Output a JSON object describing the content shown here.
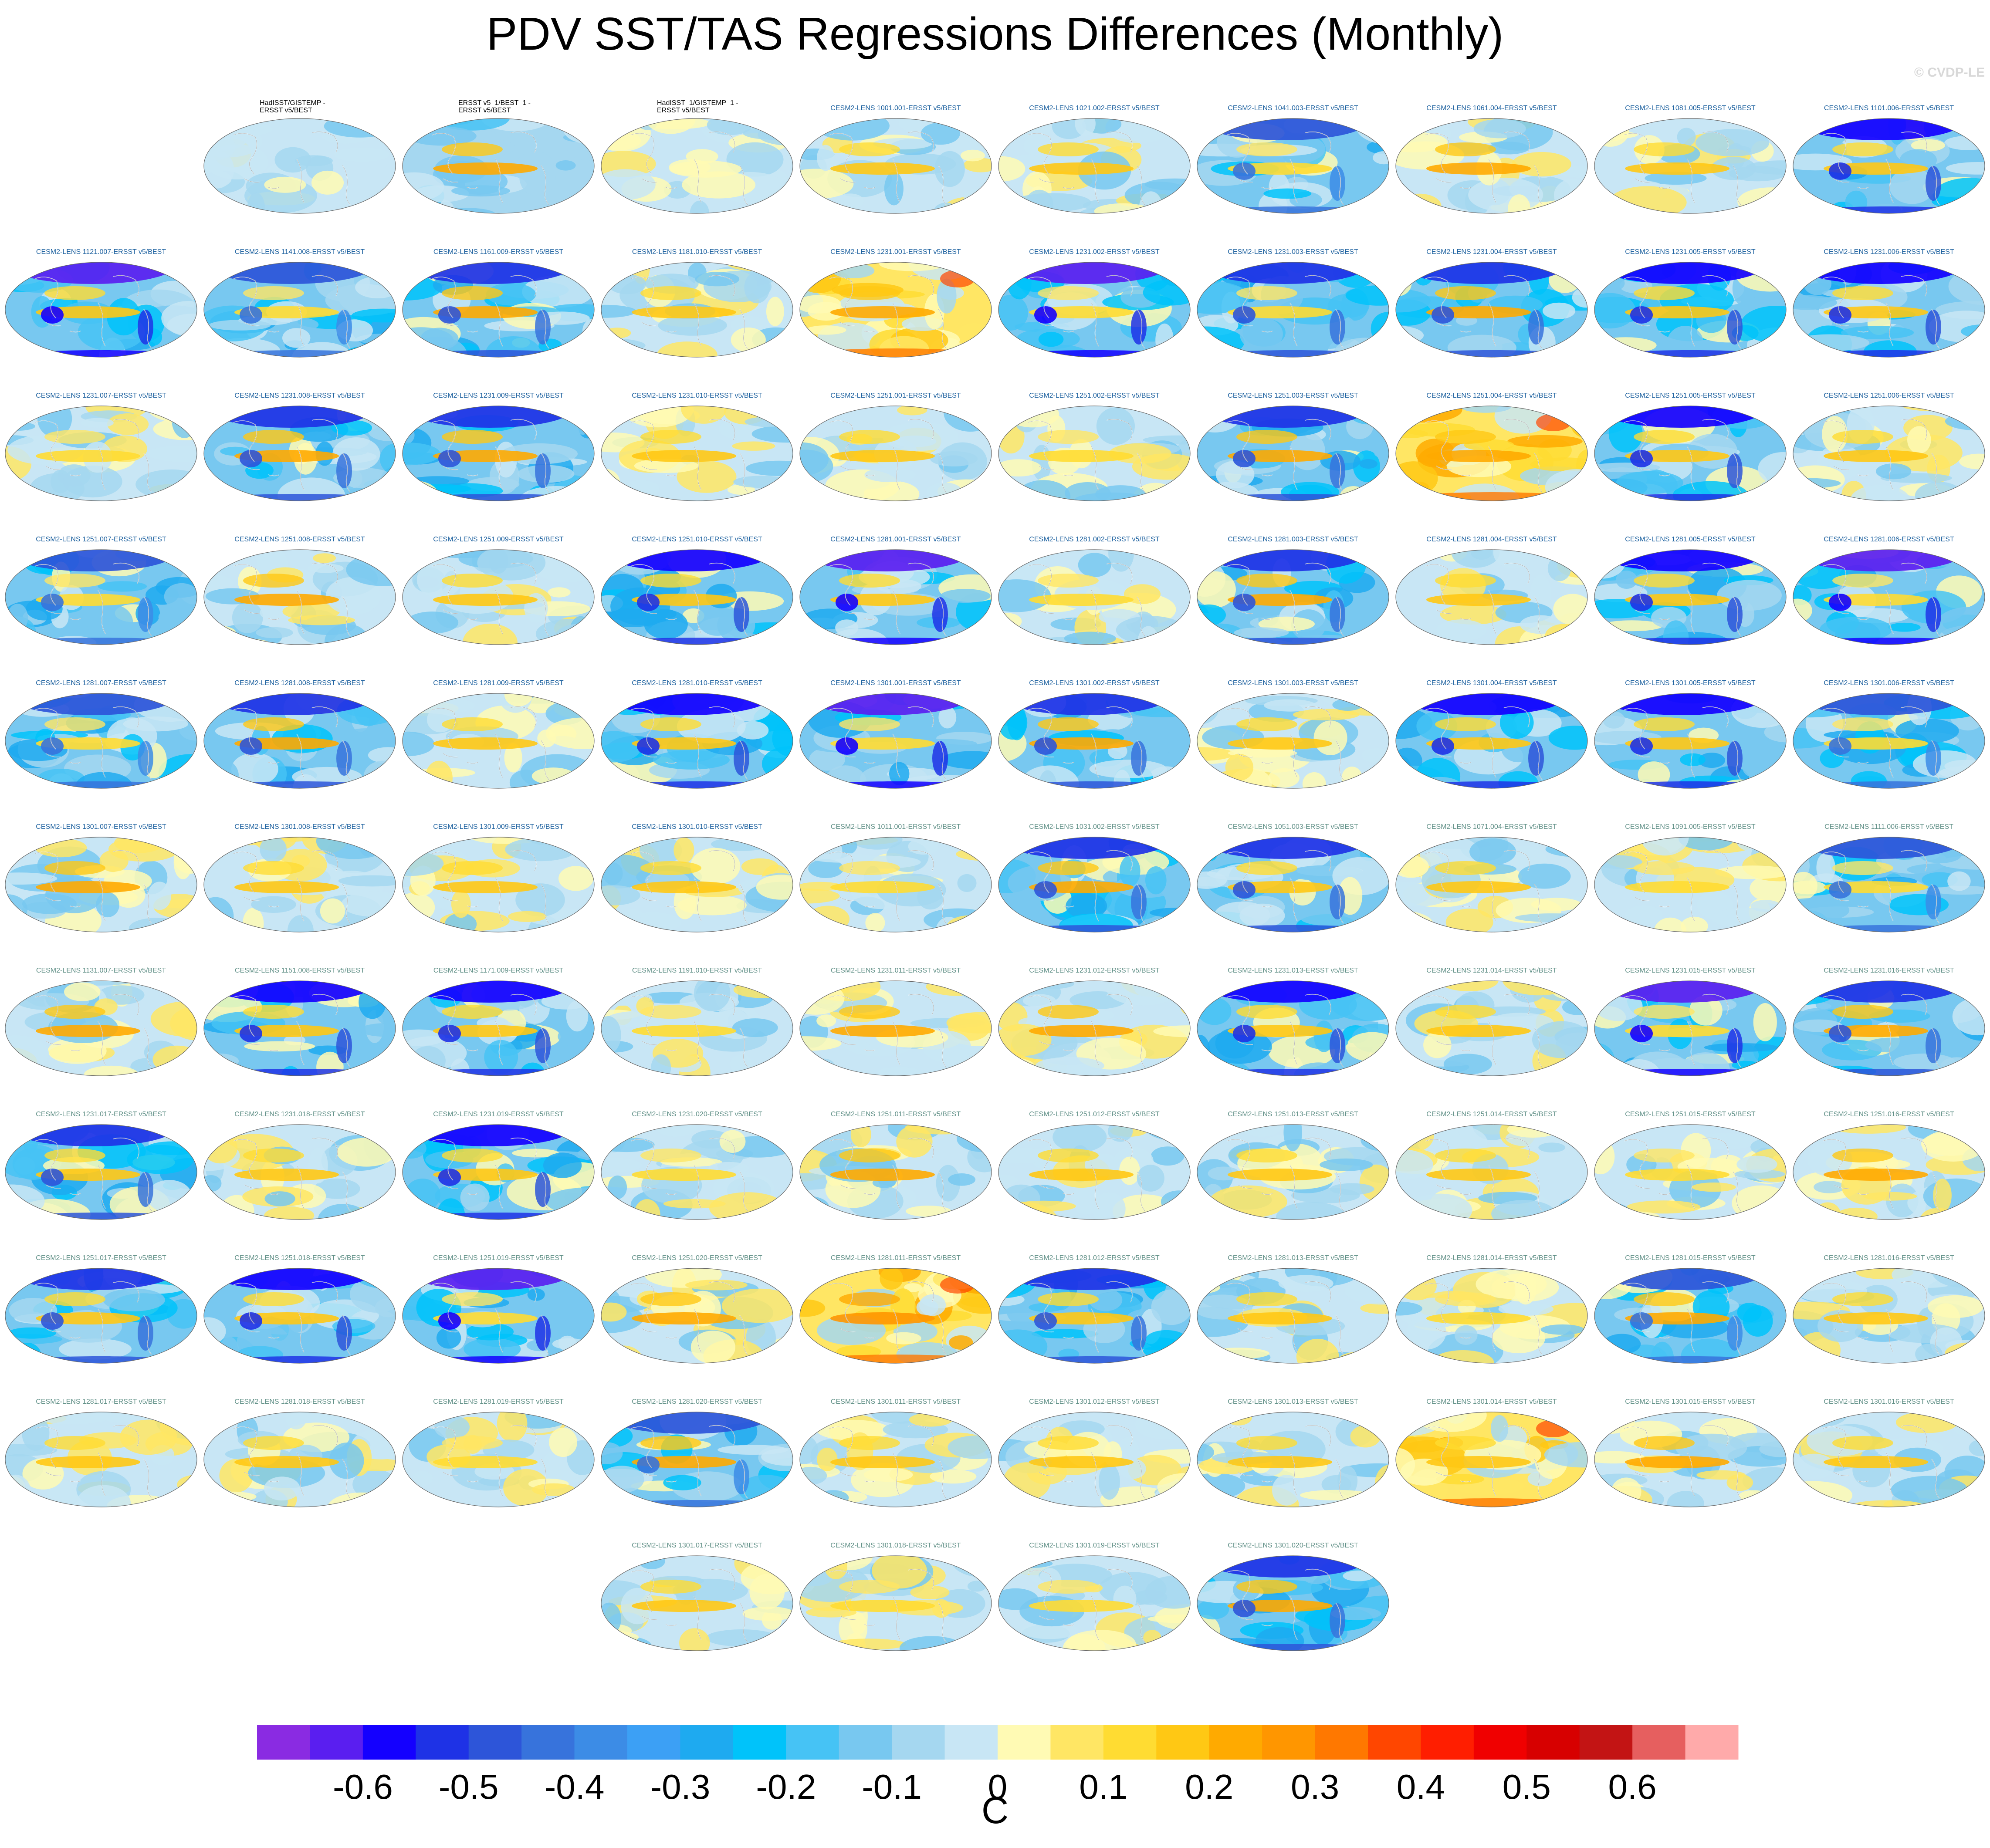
{
  "title": "PDV SST/TAS Regressions Differences (Monthly)",
  "watermark": "© CVDP-LE",
  "chart_data": {
    "type": "heatmap",
    "projection": "robinson",
    "layout": "small multiples",
    "rows": [
      [
        null,
        {
          "label": "HadISST/GISTEMP -\nERSST v5/BEST",
          "label_color": "#000000",
          "mode": "obs"
        },
        {
          "label": "ERSST v5_1/BEST_1 -\nERSST v5/BEST",
          "label_color": "#000000",
          "mode": "obs2"
        },
        {
          "label": "HadISST_1/GISTEMP_1 -\nERSST v5/BEST",
          "label_color": "#000000",
          "mode": "obs"
        },
        {
          "label": "CESM2-LENS 1001.001-ERSST v5/BEST",
          "label_color": "#1a5f9e",
          "mode": "mid"
        },
        {
          "label": "CESM2-LENS 1021.002-ERSST v5/BEST",
          "label_color": "#1a5f9e",
          "mode": "mid"
        },
        {
          "label": "CESM2-LENS 1041.003-ERSST v5/BEST",
          "label_color": "#1a5f9e",
          "mode": "cool"
        },
        {
          "label": "CESM2-LENS 1061.004-ERSST v5/BEST",
          "label_color": "#1a5f9e",
          "mode": "mid"
        },
        {
          "label": "CESM2-LENS 1081.005-ERSST v5/BEST",
          "label_color": "#1a5f9e",
          "mode": "mid"
        },
        {
          "label": "CESM2-LENS 1101.006-ERSST v5/BEST",
          "label_color": "#1a5f9e",
          "mode": "cool"
        }
      ],
      [
        {
          "label": "CESM2-LENS 1121.007-ERSST v5/BEST",
          "label_color": "#1a5f9e",
          "mode": "cool"
        },
        {
          "label": "CESM2-LENS 1141.008-ERSST v5/BEST",
          "label_color": "#1a5f9e",
          "mode": "cool"
        },
        {
          "label": "CESM2-LENS 1161.009-ERSST v5/BEST",
          "label_color": "#1a5f9e",
          "mode": "cool"
        },
        {
          "label": "CESM2-LENS 1181.010-ERSST v5/BEST",
          "label_color": "#1a5f9e",
          "mode": "mid"
        },
        {
          "label": "CESM2-LENS 1231.001-ERSST v5/BEST",
          "label_color": "#1a5f9e",
          "mode": "warm"
        },
        {
          "label": "CESM2-LENS 1231.002-ERSST v5/BEST",
          "label_color": "#1a5f9e",
          "mode": "cool"
        },
        {
          "label": "CESM2-LENS 1231.003-ERSST v5/BEST",
          "label_color": "#1a5f9e",
          "mode": "cool"
        },
        {
          "label": "CESM2-LENS 1231.004-ERSST v5/BEST",
          "label_color": "#1a5f9e",
          "mode": "cool"
        },
        {
          "label": "CESM2-LENS 1231.005-ERSST v5/BEST",
          "label_color": "#1a5f9e",
          "mode": "cool"
        },
        {
          "label": "CESM2-LENS 1231.006-ERSST v5/BEST",
          "label_color": "#1a5f9e",
          "mode": "cool"
        }
      ],
      [
        {
          "label": "CESM2-LENS 1231.007-ERSST v5/BEST",
          "label_color": "#1a5f9e",
          "mode": "mid"
        },
        {
          "label": "CESM2-LENS 1231.008-ERSST v5/BEST",
          "label_color": "#1a5f9e",
          "mode": "cool"
        },
        {
          "label": "CESM2-LENS 1231.009-ERSST v5/BEST",
          "label_color": "#1a5f9e",
          "mode": "cool"
        },
        {
          "label": "CESM2-LENS 1231.010-ERSST v5/BEST",
          "label_color": "#1a5f9e",
          "mode": "mid"
        },
        {
          "label": "CESM2-LENS 1251.001-ERSST v5/BEST",
          "label_color": "#1a5f9e",
          "mode": "mid"
        },
        {
          "label": "CESM2-LENS 1251.002-ERSST v5/BEST",
          "label_color": "#1a5f9e",
          "mode": "mid"
        },
        {
          "label": "CESM2-LENS 1251.003-ERSST v5/BEST",
          "label_color": "#1a5f9e",
          "mode": "cool"
        },
        {
          "label": "CESM2-LENS 1251.004-ERSST v5/BEST",
          "label_color": "#1a5f9e",
          "mode": "warm"
        },
        {
          "label": "CESM2-LENS 1251.005-ERSST v5/BEST",
          "label_color": "#1a5f9e",
          "mode": "cool"
        },
        {
          "label": "CESM2-LENS 1251.006-ERSST v5/BEST",
          "label_color": "#1a5f9e",
          "mode": "mid"
        }
      ],
      [
        {
          "label": "CESM2-LENS 1251.007-ERSST v5/BEST",
          "label_color": "#1a5f9e",
          "mode": "cool"
        },
        {
          "label": "CESM2-LENS 1251.008-ERSST v5/BEST",
          "label_color": "#1a5f9e",
          "mode": "mid"
        },
        {
          "label": "CESM2-LENS 1251.009-ERSST v5/BEST",
          "label_color": "#1a5f9e",
          "mode": "mid"
        },
        {
          "label": "CESM2-LENS 1251.010-ERSST v5/BEST",
          "label_color": "#1a5f9e",
          "mode": "cool"
        },
        {
          "label": "CESM2-LENS 1281.001-ERSST v5/BEST",
          "label_color": "#1a5f9e",
          "mode": "cool"
        },
        {
          "label": "CESM2-LENS 1281.002-ERSST v5/BEST",
          "label_color": "#1a5f9e",
          "mode": "mid"
        },
        {
          "label": "CESM2-LENS 1281.003-ERSST v5/BEST",
          "label_color": "#1a5f9e",
          "mode": "cool"
        },
        {
          "label": "CESM2-LENS 1281.004-ERSST v5/BEST",
          "label_color": "#1a5f9e",
          "mode": "mid"
        },
        {
          "label": "CESM2-LENS 1281.005-ERSST v5/BEST",
          "label_color": "#1a5f9e",
          "mode": "cool"
        },
        {
          "label": "CESM2-LENS 1281.006-ERSST v5/BEST",
          "label_color": "#1a5f9e",
          "mode": "cool"
        }
      ],
      [
        {
          "label": "CESM2-LENS 1281.007-ERSST v5/BEST",
          "label_color": "#1a5f9e",
          "mode": "cool"
        },
        {
          "label": "CESM2-LENS 1281.008-ERSST v5/BEST",
          "label_color": "#1a5f9e",
          "mode": "cool"
        },
        {
          "label": "CESM2-LENS 1281.009-ERSST v5/BEST",
          "label_color": "#1a5f9e",
          "mode": "mid"
        },
        {
          "label": "CESM2-LENS 1281.010-ERSST v5/BEST",
          "label_color": "#1a5f9e",
          "mode": "cool"
        },
        {
          "label": "CESM2-LENS 1301.001-ERSST v5/BEST",
          "label_color": "#1a5f9e",
          "mode": "cool"
        },
        {
          "label": "CESM2-LENS 1301.002-ERSST v5/BEST",
          "label_color": "#1a5f9e",
          "mode": "cool"
        },
        {
          "label": "CESM2-LENS 1301.003-ERSST v5/BEST",
          "label_color": "#1a5f9e",
          "mode": "mid"
        },
        {
          "label": "CESM2-LENS 1301.004-ERSST v5/BEST",
          "label_color": "#1a5f9e",
          "mode": "cool"
        },
        {
          "label": "CESM2-LENS 1301.005-ERSST v5/BEST",
          "label_color": "#1a5f9e",
          "mode": "cool"
        },
        {
          "label": "CESM2-LENS 1301.006-ERSST v5/BEST",
          "label_color": "#1a5f9e",
          "mode": "cool"
        }
      ],
      [
        {
          "label": "CESM2-LENS 1301.007-ERSST v5/BEST",
          "label_color": "#1a5f9e",
          "mode": "mid"
        },
        {
          "label": "CESM2-LENS 1301.008-ERSST v5/BEST",
          "label_color": "#1a5f9e",
          "mode": "mid"
        },
        {
          "label": "CESM2-LENS 1301.009-ERSST v5/BEST",
          "label_color": "#1a5f9e",
          "mode": "mid"
        },
        {
          "label": "CESM2-LENS 1301.010-ERSST v5/BEST",
          "label_color": "#1a5f9e",
          "mode": "mid"
        },
        {
          "label": "CESM2-LENS 1011.001-ERSST v5/BEST",
          "label_color": "#5f8f86",
          "mode": "mid"
        },
        {
          "label": "CESM2-LENS 1031.002-ERSST v5/BEST",
          "label_color": "#5f8f86",
          "mode": "cool"
        },
        {
          "label": "CESM2-LENS 1051.003-ERSST v5/BEST",
          "label_color": "#5f8f86",
          "mode": "cool"
        },
        {
          "label": "CESM2-LENS 1071.004-ERSST v5/BEST",
          "label_color": "#5f8f86",
          "mode": "mid"
        },
        {
          "label": "CESM2-LENS 1091.005-ERSST v5/BEST",
          "label_color": "#5f8f86",
          "mode": "mid"
        },
        {
          "label": "CESM2-LENS 1111.006-ERSST v5/BEST",
          "label_color": "#5f8f86",
          "mode": "cool"
        }
      ],
      [
        {
          "label": "CESM2-LENS 1131.007-ERSST v5/BEST",
          "label_color": "#5f8f86",
          "mode": "mid"
        },
        {
          "label": "CESM2-LENS 1151.008-ERSST v5/BEST",
          "label_color": "#5f8f86",
          "mode": "cool"
        },
        {
          "label": "CESM2-LENS 1171.009-ERSST v5/BEST",
          "label_color": "#5f8f86",
          "mode": "cool"
        },
        {
          "label": "CESM2-LENS 1191.010-ERSST v5/BEST",
          "label_color": "#5f8f86",
          "mode": "mid"
        },
        {
          "label": "CESM2-LENS 1231.011-ERSST v5/BEST",
          "label_color": "#5f8f86",
          "mode": "mid"
        },
        {
          "label": "CESM2-LENS 1231.012-ERSST v5/BEST",
          "label_color": "#5f8f86",
          "mode": "mid"
        },
        {
          "label": "CESM2-LENS 1231.013-ERSST v5/BEST",
          "label_color": "#5f8f86",
          "mode": "cool"
        },
        {
          "label": "CESM2-LENS 1231.014-ERSST v5/BEST",
          "label_color": "#5f8f86",
          "mode": "mid"
        },
        {
          "label": "CESM2-LENS 1231.015-ERSST v5/BEST",
          "label_color": "#5f8f86",
          "mode": "cool"
        },
        {
          "label": "CESM2-LENS 1231.016-ERSST v5/BEST",
          "label_color": "#5f8f86",
          "mode": "cool"
        }
      ],
      [
        {
          "label": "CESM2-LENS 1231.017-ERSST v5/BEST",
          "label_color": "#5f8f86",
          "mode": "cool"
        },
        {
          "label": "CESM2-LENS 1231.018-ERSST v5/BEST",
          "label_color": "#5f8f86",
          "mode": "mid"
        },
        {
          "label": "CESM2-LENS 1231.019-ERSST v5/BEST",
          "label_color": "#5f8f86",
          "mode": "cool"
        },
        {
          "label": "CESM2-LENS 1231.020-ERSST v5/BEST",
          "label_color": "#5f8f86",
          "mode": "mid"
        },
        {
          "label": "CESM2-LENS 1251.011-ERSST v5/BEST",
          "label_color": "#5f8f86",
          "mode": "mid"
        },
        {
          "label": "CESM2-LENS 1251.012-ERSST v5/BEST",
          "label_color": "#5f8f86",
          "mode": "mid"
        },
        {
          "label": "CESM2-LENS 1251.013-ERSST v5/BEST",
          "label_color": "#5f8f86",
          "mode": "mid"
        },
        {
          "label": "CESM2-LENS 1251.014-ERSST v5/BEST",
          "label_color": "#5f8f86",
          "mode": "mid"
        },
        {
          "label": "CESM2-LENS 1251.015-ERSST v5/BEST",
          "label_color": "#5f8f86",
          "mode": "mid"
        },
        {
          "label": "CESM2-LENS 1251.016-ERSST v5/BEST",
          "label_color": "#5f8f86",
          "mode": "mid"
        }
      ],
      [
        {
          "label": "CESM2-LENS 1251.017-ERSST v5/BEST",
          "label_color": "#5f8f86",
          "mode": "cool"
        },
        {
          "label": "CESM2-LENS 1251.018-ERSST v5/BEST",
          "label_color": "#5f8f86",
          "mode": "cool"
        },
        {
          "label": "CESM2-LENS 1251.019-ERSST v5/BEST",
          "label_color": "#5f8f86",
          "mode": "cool"
        },
        {
          "label": "CESM2-LENS 1251.020-ERSST v5/BEST",
          "label_color": "#5f8f86",
          "mode": "mid"
        },
        {
          "label": "CESM2-LENS 1281.011-ERSST v5/BEST",
          "label_color": "#5f8f86",
          "mode": "warm"
        },
        {
          "label": "CESM2-LENS 1281.012-ERSST v5/BEST",
          "label_color": "#5f8f86",
          "mode": "cool"
        },
        {
          "label": "CESM2-LENS 1281.013-ERSST v5/BEST",
          "label_color": "#5f8f86",
          "mode": "mid"
        },
        {
          "label": "CESM2-LENS 1281.014-ERSST v5/BEST",
          "label_color": "#5f8f86",
          "mode": "mid"
        },
        {
          "label": "CESM2-LENS 1281.015-ERSST v5/BEST",
          "label_color": "#5f8f86",
          "mode": "cool"
        },
        {
          "label": "CESM2-LENS 1281.016-ERSST v5/BEST",
          "label_color": "#5f8f86",
          "mode": "mid"
        }
      ],
      [
        {
          "label": "CESM2-LENS 1281.017-ERSST v5/BEST",
          "label_color": "#5f8f86",
          "mode": "mid"
        },
        {
          "label": "CESM2-LENS 1281.018-ERSST v5/BEST",
          "label_color": "#5f8f86",
          "mode": "mid"
        },
        {
          "label": "CESM2-LENS 1281.019-ERSST v5/BEST",
          "label_color": "#5f8f86",
          "mode": "mid"
        },
        {
          "label": "CESM2-LENS 1281.020-ERSST v5/BEST",
          "label_color": "#5f8f86",
          "mode": "cool"
        },
        {
          "label": "CESM2-LENS 1301.011-ERSST v5/BEST",
          "label_color": "#5f8f86",
          "mode": "mid"
        },
        {
          "label": "CESM2-LENS 1301.012-ERSST v5/BEST",
          "label_color": "#5f8f86",
          "mode": "mid"
        },
        {
          "label": "CESM2-LENS 1301.013-ERSST v5/BEST",
          "label_color": "#5f8f86",
          "mode": "mid"
        },
        {
          "label": "CESM2-LENS 1301.014-ERSST v5/BEST",
          "label_color": "#5f8f86",
          "mode": "warm"
        },
        {
          "label": "CESM2-LENS 1301.015-ERSST v5/BEST",
          "label_color": "#5f8f86",
          "mode": "mid"
        },
        {
          "label": "CESM2-LENS 1301.016-ERSST v5/BEST",
          "label_color": "#5f8f86",
          "mode": "mid"
        }
      ],
      [
        null,
        null,
        null,
        {
          "label": "CESM2-LENS 1301.017-ERSST v5/BEST",
          "label_color": "#5f8f86",
          "mode": "mid"
        },
        {
          "label": "CESM2-LENS 1301.018-ERSST v5/BEST",
          "label_color": "#5f8f86",
          "mode": "mid"
        },
        {
          "label": "CESM2-LENS 1301.019-ERSST v5/BEST",
          "label_color": "#5f8f86",
          "mode": "mid"
        },
        {
          "label": "CESM2-LENS 1301.020-ERSST v5/BEST",
          "label_color": "#5f8f86",
          "mode": "cool"
        },
        null,
        null,
        null
      ]
    ],
    "colorbar": {
      "units": "C",
      "levels": [
        -0.65,
        -0.6,
        -0.55,
        -0.5,
        -0.45,
        -0.4,
        -0.35,
        -0.3,
        -0.25,
        -0.2,
        -0.15,
        -0.1,
        -0.05,
        0,
        0.05,
        0.1,
        0.15,
        0.2,
        0.25,
        0.3,
        0.35,
        0.4,
        0.45,
        0.5,
        0.55,
        0.6,
        0.65
      ],
      "colors": [
        "#8a2be2",
        "#5a1ef0",
        "#1400ff",
        "#1e32e6",
        "#2d55d9",
        "#3773dc",
        "#3c8ce6",
        "#3ca0f5",
        "#1eaaf0",
        "#00c3fa",
        "#46c3f5",
        "#78c8f0",
        "#a5d7f0",
        "#c8e6f5",
        "#fffab4",
        "#ffe664",
        "#ffdc32",
        "#ffc814",
        "#ffaa00",
        "#ff9600",
        "#ff7800",
        "#ff4600",
        "#ff1e00",
        "#f00000",
        "#d70000",
        "#c31414",
        "#e65f5f",
        "#ffaaaa"
      ],
      "tick_labels": [
        "-0.6",
        "-0.5",
        "-0.4",
        "-0.3",
        "-0.2",
        "-0.1",
        "0",
        "0.1",
        "0.2",
        "0.3",
        "0.4",
        "0.5",
        "0.6"
      ]
    }
  }
}
